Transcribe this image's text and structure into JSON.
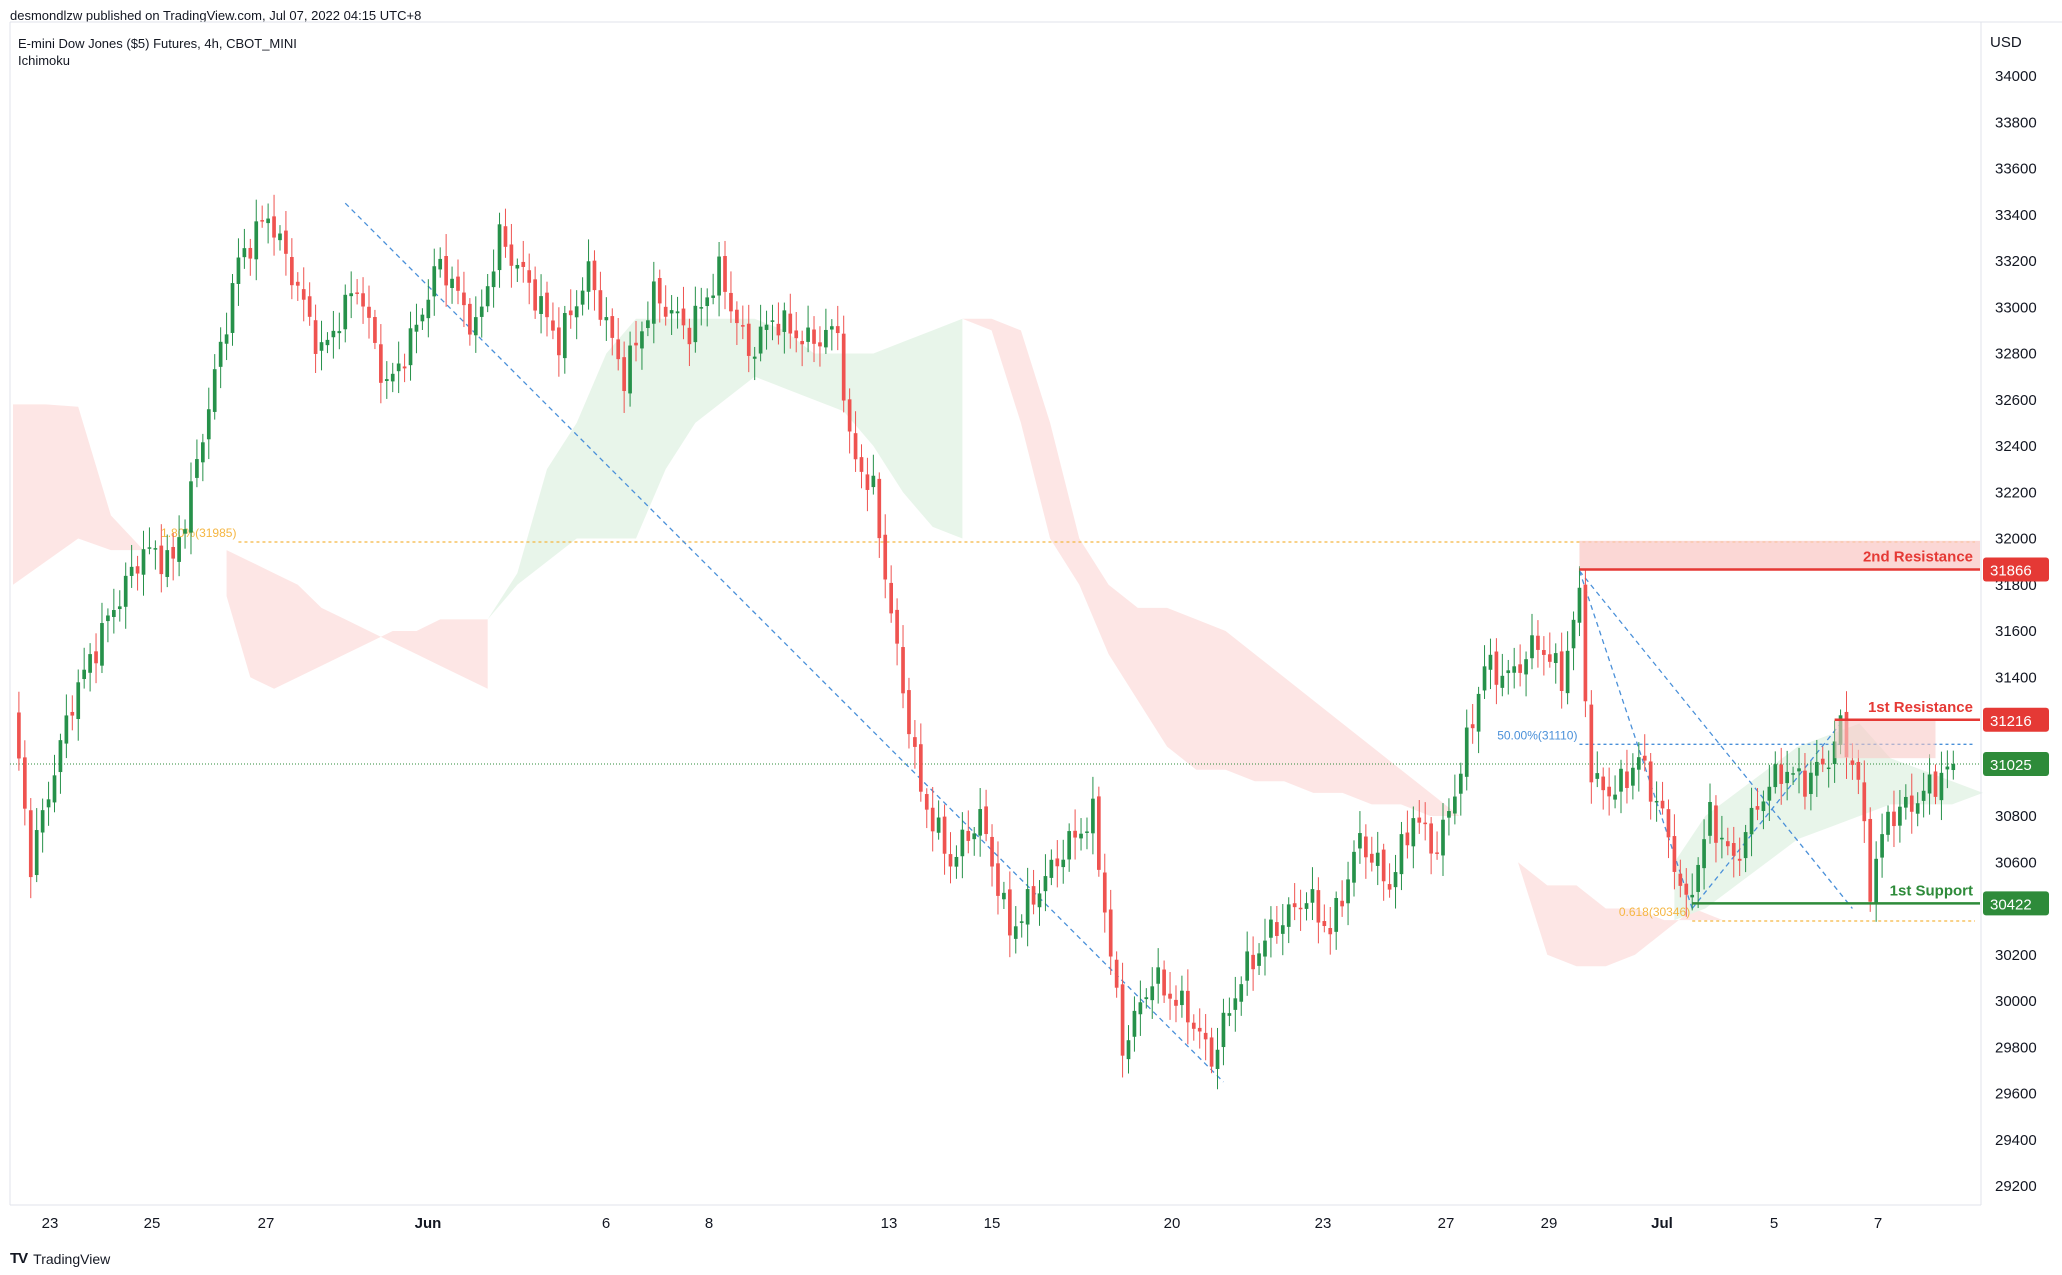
{
  "publisher_line": "desmondlzw published on TradingView.com, Jul 07, 2022 04:15 UTC+8",
  "symbol_line": "E-mini Dow Jones ($5) Futures, 4h, CBOT_MINI",
  "indicator_line": "Ichimoku",
  "logo_text": "TradingView",
  "currency": "USD",
  "colors": {
    "up": "#26914a",
    "down": "#ef5350",
    "resistance": "#e53935",
    "support": "#2e8b3a",
    "fib": "#f5b642",
    "trend": "#4a90d9",
    "cloud_bull": "#e6f4e8",
    "cloud_bear": "#fde3e2",
    "last_price": "#2e8b3a"
  },
  "chart_data": {
    "type": "candlestick",
    "timeframe": "4h",
    "y_ticks": [
      29200,
      29400,
      29600,
      29800,
      30000,
      30200,
      30400,
      30600,
      30800,
      31000,
      31200,
      31400,
      31600,
      31800,
      32000,
      32200,
      32400,
      32600,
      32800,
      33000,
      33200,
      33400,
      33600,
      33800,
      34000
    ],
    "ylim": [
      29080,
      34150
    ],
    "x_labels": [
      "23",
      "25",
      "27",
      "Jun",
      "6",
      "8",
      "13",
      "15",
      "20",
      "23",
      "27",
      "29",
      "Jul",
      "5",
      "7"
    ],
    "path_points": [
      [
        0,
        31250
      ],
      [
        3,
        30600
      ],
      [
        10,
        31300
      ],
      [
        16,
        31650
      ],
      [
        22,
        31950
      ],
      [
        27,
        31900
      ],
      [
        30,
        32200
      ],
      [
        34,
        32700
      ],
      [
        38,
        33200
      ],
      [
        43,
        33400
      ],
      [
        47,
        33150
      ],
      [
        52,
        32800
      ],
      [
        58,
        33100
      ],
      [
        63,
        32650
      ],
      [
        67,
        32850
      ],
      [
        72,
        33200
      ],
      [
        78,
        32900
      ],
      [
        82,
        33300
      ],
      [
        87,
        33100
      ],
      [
        92,
        32850
      ],
      [
        97,
        33150
      ],
      [
        103,
        32700
      ],
      [
        108,
        33050
      ],
      [
        114,
        32900
      ],
      [
        119,
        33150
      ],
      [
        124,
        32800
      ],
      [
        128,
        32950
      ],
      [
        134,
        32850
      ],
      [
        139,
        32900
      ],
      [
        141,
        32400
      ],
      [
        145,
        32200
      ],
      [
        149,
        31500
      ],
      [
        153,
        30900
      ],
      [
        158,
        30600
      ],
      [
        163,
        30800
      ],
      [
        168,
        30300
      ],
      [
        172,
        30450
      ],
      [
        177,
        30650
      ],
      [
        182,
        30800
      ],
      [
        187,
        29800
      ],
      [
        192,
        30100
      ],
      [
        198,
        29950
      ],
      [
        202,
        29750
      ],
      [
        207,
        30100
      ],
      [
        212,
        30300
      ],
      [
        218,
        30450
      ],
      [
        222,
        30300
      ],
      [
        227,
        30700
      ],
      [
        232,
        30500
      ],
      [
        236,
        30800
      ],
      [
        240,
        30650
      ],
      [
        244,
        31000
      ],
      [
        248,
        31450
      ],
      [
        252,
        31400
      ],
      [
        257,
        31550
      ],
      [
        261,
        31400
      ],
      [
        264,
        31750
      ],
      [
        266,
        30950
      ],
      [
        270,
        30900
      ],
      [
        274,
        31050
      ],
      [
        278,
        30800
      ],
      [
        282,
        30400
      ],
      [
        286,
        30800
      ],
      [
        290,
        30600
      ],
      [
        294,
        30850
      ],
      [
        298,
        31000
      ],
      [
        302,
        30950
      ],
      [
        306,
        31050
      ],
      [
        308,
        31180
      ],
      [
        311,
        30950
      ],
      [
        313,
        30500
      ],
      [
        316,
        30800
      ],
      [
        320,
        30850
      ],
      [
        324,
        30950
      ],
      [
        327,
        31025
      ]
    ],
    "cloud_segments": [
      {
        "kind": "bear",
        "x_from": 0,
        "x_to": 22,
        "top": [
          32580,
          32580,
          32570,
          32100,
          31950
        ],
        "bottom": [
          31800,
          31900,
          32000,
          31950,
          31950
        ]
      },
      {
        "kind": "bear",
        "x_from": 36,
        "x_to": 80,
        "top": [
          31950,
          31900,
          31850,
          31800,
          31700,
          31650,
          31600,
          31550,
          31500,
          31450,
          31400,
          31350
        ],
        "bottom": [
          31750,
          31400,
          31350,
          31400,
          31450,
          31500,
          31550,
          31600,
          31600,
          31650,
          31650,
          31650
        ]
      },
      {
        "kind": "bull",
        "x_from": 80,
        "x_to": 160,
        "top": [
          31650,
          31850,
          32300,
          32500,
          32800,
          32950,
          32950,
          32950,
          32950,
          32950,
          32900,
          32800,
          32800,
          32800,
          32850,
          32900,
          32950
        ],
        "bottom": [
          31650,
          31800,
          31900,
          32000,
          32000,
          32000,
          32300,
          32500,
          32600,
          32700,
          32650,
          32600,
          32550,
          32400,
          32200,
          32050,
          32000
        ]
      },
      {
        "kind": "bear",
        "x_from": 160,
        "x_to": 298,
        "top": [
          32950,
          32950,
          32900,
          32500,
          32000,
          31800,
          31700,
          31700,
          31650,
          31600,
          31500,
          31400,
          31300,
          31200,
          31100,
          31000,
          30900,
          30800,
          30700,
          30600,
          30500,
          30500,
          30400,
          30400,
          30350,
          30350,
          30350,
          30350,
          30350
        ],
        "bottom": [
          32950,
          32900,
          32500,
          32000,
          31800,
          31500,
          31300,
          31100,
          31000,
          31000,
          30950,
          30950,
          30900,
          30900,
          30850,
          30850,
          30800,
          30800,
          30700,
          30600,
          30200,
          30150,
          30150,
          30200,
          30300,
          30400,
          30350,
          30350,
          30350
        ]
      },
      {
        "kind": "bull",
        "x_from": 280,
        "x_to": 332,
        "top": [
          30600,
          30800,
          30900,
          31000,
          31100,
          31150,
          31200,
          31050,
          31000,
          30950,
          30900
        ],
        "bottom": [
          30350,
          30400,
          30500,
          30600,
          30700,
          30750,
          30800,
          30850,
          30850,
          30850,
          30900
        ]
      }
    ],
    "levels": [
      {
        "name": "2nd Resistance",
        "value": 31866,
        "label": "31866",
        "color": "#e53935",
        "x_from": 264
      },
      {
        "name": "1st Resistance",
        "value": 31216,
        "label": "31216",
        "color": "#e53935",
        "x_from": 307
      },
      {
        "name": "1st Support",
        "value": 30422,
        "label": "30422",
        "color": "#2e8b3a",
        "x_from": 283
      }
    ],
    "resistance_zone": {
      "from": 31866,
      "to": 31990,
      "x_from": 264
    },
    "resistance1_zone": {
      "from": 31216,
      "to": 31050,
      "x_from": 307,
      "x_to": 324
    },
    "last_price": {
      "value": 31025,
      "label": "31025"
    },
    "fib_lines": [
      {
        "label": "1.80%(31985)",
        "value": 31985,
        "x_from": 38,
        "color": "#f5b642",
        "dotted": true
      },
      {
        "label": "50.00%(31110)",
        "value": 31110,
        "x_from": 264,
        "color": "#4a90d9",
        "dotted": true
      },
      {
        "label": "0.618(30346)",
        "value": 30346,
        "x_from": 283,
        "color": "#f5b642",
        "dotted": true
      }
    ],
    "trend_lines": [
      {
        "from": [
          56,
          33450
        ],
        "to": [
          204,
          29650
        ]
      },
      {
        "from": [
          264,
          31860
        ],
        "to": [
          283,
          30400
        ]
      },
      {
        "from": [
          264,
          31860
        ],
        "to": [
          310,
          30400
        ]
      },
      {
        "from": [
          283,
          30400
        ],
        "to": [
          308,
          31200
        ]
      }
    ]
  }
}
